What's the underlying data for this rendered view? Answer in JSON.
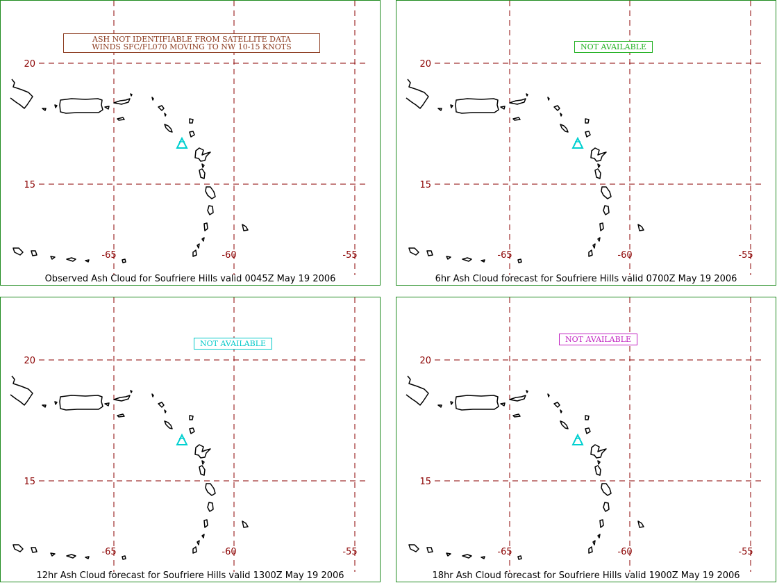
{
  "colors": {
    "panel_border": "#1e8a1e",
    "grid": "#8b0000",
    "coast": "#000000",
    "volcano": "#00d0d0",
    "notice_panel1": "#8b3a1e",
    "notice_panel2": "#20b020",
    "notice_panel3": "#00c8c8",
    "notice_panel4": "#c020c0"
  },
  "map": {
    "lat_labels": [
      "20",
      "15"
    ],
    "lon_labels": [
      "-65",
      "-60",
      "-55"
    ],
    "volcano_icon": "triangle-volcano-icon"
  },
  "panels": [
    {
      "caption": "Observed Ash Cloud for Soufriere  Hills valid 0045Z May 19 2006",
      "notice": "ASH NOT IDENTIFIABLE FROM SATELLITE DATA\nWINDS SFC/FL070 MOVING TO NW 10-15 KNOTS"
    },
    {
      "caption": "6hr Ash Cloud forecast for Soufriere  Hills valid 0700Z May 19 2006",
      "notice": "NOT AVAILABLE"
    },
    {
      "caption": "12hr Ash Cloud forecast for Soufriere  Hills valid 1300Z May 19 2006",
      "notice": "NOT AVAILABLE"
    },
    {
      "caption": "18hr Ash Cloud forecast for Soufriere  Hills valid 1900Z May 19 2006",
      "notice": "NOT AVAILABLE"
    }
  ]
}
